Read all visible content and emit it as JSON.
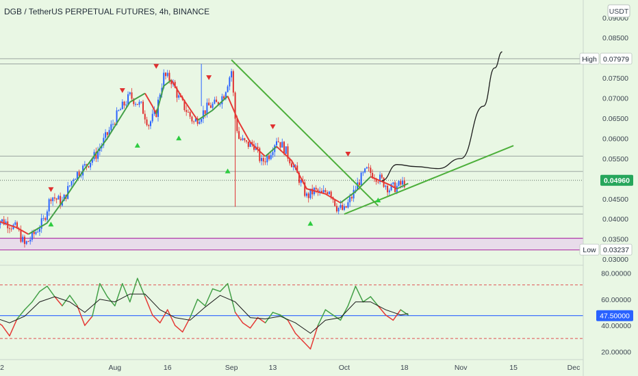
{
  "header": {
    "title": "DGB / TetherUS PERPETUAL FUTURES, 4h, BINANCE",
    "currency_label": "USDT"
  },
  "colors": {
    "background": "#e9f7e4",
    "up_candle": "#2962ff",
    "down_candle": "#e03030",
    "trendline": "#4caf3a",
    "ma_up": "#43a047",
    "ma_down": "#e53935",
    "rsi_upper": "#43a047",
    "rsi_lower": "#e53935",
    "rsi_signal": "#1a1a1a",
    "projection": "#1a1a1a",
    "zone_fill": "#e8dcea",
    "zone_border": "#b03aa8",
    "last_price_tag": "#26a65b",
    "rsi_level_tag": "#2962ff",
    "level_line": "#9aa5a0",
    "dashed_level": "#e05050"
  },
  "chart_data": [
    {
      "type": "candlestick",
      "name": "price",
      "y_axis_ticks": [
        "0.09000",
        "0.08500",
        "0.07979",
        "0.07500",
        "0.07000",
        "0.06500",
        "0.06000",
        "0.05500",
        "0.04960",
        "0.04500",
        "0.04000",
        "0.03500",
        "0.03237",
        "0.03000"
      ],
      "ylim": [
        0.029,
        0.092
      ],
      "x_axis_ticks": [
        "2",
        "Aug",
        "16",
        "Sep",
        "13",
        "Oct",
        "18",
        "Nov",
        "15",
        "Dec"
      ],
      "x_tick_days": [
        2,
        32,
        46,
        63,
        74,
        93,
        109,
        124,
        138,
        154
      ],
      "high": {
        "label": "High",
        "value": "0.07979"
      },
      "low": {
        "label": "Low",
        "value": "0.03237"
      },
      "last_price": "0.04960",
      "last_price_value": 0.0496,
      "horizontal_levels": [
        0.0798,
        0.0785,
        0.0556,
        0.0518,
        0.0431,
        0.0412
      ],
      "support_zone": [
        0.0323,
        0.0352
      ],
      "trendline_resistance": [
        [
          63,
          0.0795
        ],
        [
          102,
          0.0433
        ]
      ],
      "trendline_support": [
        [
          93,
          0.0412
        ],
        [
          138,
          0.0582
        ]
      ],
      "projection_path": [
        [
          103,
          0.0495
        ],
        [
          107,
          0.0535
        ],
        [
          112,
          0.053
        ],
        [
          118,
          0.0525
        ],
        [
          124,
          0.055
        ],
        [
          130,
          0.068
        ],
        [
          133,
          0.0775
        ],
        [
          135,
          0.0815
        ]
      ],
      "close_path": [
        [
          0,
          0.04
        ],
        [
          3,
          0.0392
        ],
        [
          6,
          0.0375
        ],
        [
          8,
          0.0335
        ],
        [
          10,
          0.0356
        ],
        [
          13,
          0.0395
        ],
        [
          15,
          0.0458
        ],
        [
          18,
          0.044
        ],
        [
          21,
          0.0505
        ],
        [
          24,
          0.053
        ],
        [
          27,
          0.056
        ],
        [
          30,
          0.061
        ],
        [
          33,
          0.0665
        ],
        [
          36,
          0.0705
        ],
        [
          39,
          0.068
        ],
        [
          41,
          0.0635
        ],
        [
          43,
          0.0665
        ],
        [
          44,
          0.0715
        ],
        [
          45,
          0.0755
        ],
        [
          47,
          0.0745
        ],
        [
          49,
          0.07
        ],
        [
          51,
          0.067
        ],
        [
          53,
          0.064
        ],
        [
          55,
          0.066
        ],
        [
          57,
          0.068
        ],
        [
          59,
          0.0685
        ],
        [
          61,
          0.071
        ],
        [
          62,
          0.074
        ],
        [
          63,
          0.0768
        ],
        [
          64,
          0.065
        ],
        [
          65,
          0.06
        ],
        [
          67,
          0.0585
        ],
        [
          69,
          0.0585
        ],
        [
          71,
          0.054
        ],
        [
          73,
          0.056
        ],
        [
          75,
          0.06
        ],
        [
          77,
          0.0575
        ],
        [
          79,
          0.054
        ],
        [
          81,
          0.05
        ],
        [
          83,
          0.0455
        ],
        [
          85,
          0.047
        ],
        [
          87,
          0.046
        ],
        [
          89,
          0.0475
        ],
        [
          91,
          0.043
        ],
        [
          93,
          0.042
        ],
        [
          95,
          0.0455
        ],
        [
          97,
          0.0495
        ],
        [
          99,
          0.052
        ],
        [
          101,
          0.051
        ],
        [
          103,
          0.0495
        ],
        [
          105,
          0.0475
        ],
        [
          107,
          0.048
        ],
        [
          109,
          0.049
        ]
      ],
      "ma_segments": [
        {
          "trend": "down",
          "points": [
            [
              0,
              0.0398
            ],
            [
              6,
              0.0378
            ],
            [
              9,
              0.0362
            ]
          ]
        },
        {
          "trend": "up",
          "points": [
            [
              9,
              0.0362
            ],
            [
              14,
              0.039
            ],
            [
              19,
              0.0455
            ],
            [
              24,
              0.0525
            ],
            [
              30,
              0.06
            ],
            [
              36,
              0.069
            ],
            [
              40,
              0.0712
            ]
          ]
        },
        {
          "trend": "down",
          "points": [
            [
              40,
              0.0712
            ],
            [
              42,
              0.068
            ],
            [
              43,
              0.066
            ]
          ]
        },
        {
          "trend": "up",
          "points": [
            [
              43,
              0.066
            ],
            [
              45,
              0.073
            ],
            [
              47,
              0.0745
            ]
          ]
        },
        {
          "trend": "down",
          "points": [
            [
              47,
              0.0745
            ],
            [
              50,
              0.07
            ],
            [
              54,
              0.0645
            ]
          ]
        },
        {
          "trend": "up",
          "points": [
            [
              54,
              0.0645
            ],
            [
              58,
              0.067
            ],
            [
              62,
              0.0705
            ]
          ]
        },
        {
          "trend": "down",
          "points": [
            [
              62,
              0.0705
            ],
            [
              65,
              0.064
            ],
            [
              68,
              0.059
            ],
            [
              72,
              0.0555
            ]
          ]
        },
        {
          "trend": "up",
          "points": [
            [
              72,
              0.0555
            ],
            [
              75,
              0.058
            ]
          ]
        },
        {
          "trend": "down",
          "points": [
            [
              75,
              0.058
            ],
            [
              79,
              0.0545
            ],
            [
              83,
              0.0475
            ],
            [
              88,
              0.0462
            ],
            [
              92,
              0.044
            ]
          ]
        },
        {
          "trend": "up",
          "points": [
            [
              92,
              0.044
            ],
            [
              96,
              0.0468
            ],
            [
              100,
              0.0505
            ]
          ]
        },
        {
          "trend": "down",
          "points": [
            [
              100,
              0.0505
            ],
            [
              105,
              0.0485
            ],
            [
              107,
              0.0475
            ]
          ]
        },
        {
          "trend": "up",
          "points": [
            [
              107,
              0.0475
            ],
            [
              110,
              0.0488
            ]
          ]
        }
      ],
      "markers_down": [
        [
          15,
          0.0472
        ],
        [
          34,
          0.0718
        ],
        [
          43,
          0.0778
        ],
        [
          57,
          0.075
        ],
        [
          74,
          0.0628
        ],
        [
          94,
          0.056
        ]
      ],
      "markers_up": [
        [
          15,
          0.0388
        ],
        [
          38,
          0.0584
        ],
        [
          49,
          0.0602
        ],
        [
          62,
          0.052
        ],
        [
          84,
          0.039
        ],
        [
          102,
          0.0448
        ]
      ]
    },
    {
      "type": "line",
      "name": "oscillator",
      "y_axis_ticks": [
        "80.00000",
        "60.00000",
        "47.50000",
        "40.00000",
        "20.00000"
      ],
      "ylim": [
        17,
        85
      ],
      "level_value": 47.5,
      "level_label": "47.50000",
      "dashed_levels": [
        71,
        30
      ],
      "series": [
        {
          "line": "main",
          "points": [
            [
              0,
              44
            ],
            [
              2,
              40
            ],
            [
              4,
              32
            ],
            [
              6,
              45
            ],
            [
              8,
              52
            ],
            [
              10,
              58
            ],
            [
              12,
              66
            ],
            [
              14,
              70
            ],
            [
              16,
              62
            ],
            [
              18,
              55
            ],
            [
              20,
              63
            ],
            [
              22,
              55
            ],
            [
              24,
              40
            ],
            [
              26,
              47
            ],
            [
              28,
              72
            ],
            [
              30,
              62
            ],
            [
              32,
              55
            ],
            [
              34,
              72
            ],
            [
              36,
              58
            ],
            [
              38,
              76
            ],
            [
              40,
              62
            ],
            [
              42,
              48
            ],
            [
              44,
              42
            ],
            [
              46,
              52
            ],
            [
              48,
              40
            ],
            [
              50,
              35
            ],
            [
              52,
              46
            ],
            [
              54,
              60
            ],
            [
              56,
              55
            ],
            [
              58,
              68
            ],
            [
              60,
              66
            ],
            [
              62,
              72
            ],
            [
              64,
              50
            ],
            [
              66,
              42
            ],
            [
              68,
              38
            ],
            [
              70,
              46
            ],
            [
              72,
              42
            ],
            [
              74,
              50
            ],
            [
              76,
              48
            ],
            [
              78,
              44
            ],
            [
              80,
              34
            ],
            [
              82,
              28
            ],
            [
              84,
              22
            ],
            [
              86,
              40
            ],
            [
              88,
              52
            ],
            [
              90,
              48
            ],
            [
              92,
              44
            ],
            [
              94,
              55
            ],
            [
              96,
              70
            ],
            [
              98,
              58
            ],
            [
              100,
              62
            ],
            [
              102,
              55
            ],
            [
              104,
              48
            ],
            [
              106,
              44
            ],
            [
              108,
              52
            ],
            [
              110,
              48
            ]
          ]
        },
        {
          "line": "signal",
          "points": [
            [
              0,
              46
            ],
            [
              4,
              42
            ],
            [
              8,
              47
            ],
            [
              12,
              58
            ],
            [
              16,
              62
            ],
            [
              20,
              58
            ],
            [
              24,
              50
            ],
            [
              28,
              60
            ],
            [
              32,
              58
            ],
            [
              36,
              64
            ],
            [
              40,
              64
            ],
            [
              44,
              52
            ],
            [
              48,
              46
            ],
            [
              52,
              44
            ],
            [
              56,
              54
            ],
            [
              60,
              63
            ],
            [
              64,
              58
            ],
            [
              68,
              46
            ],
            [
              72,
              45
            ],
            [
              76,
              47
            ],
            [
              80,
              42
            ],
            [
              84,
              34
            ],
            [
              88,
              44
            ],
            [
              92,
              46
            ],
            [
              96,
              58
            ],
            [
              100,
              58
            ],
            [
              104,
              52
            ],
            [
              108,
              48
            ],
            [
              110,
              49
            ]
          ]
        }
      ]
    }
  ]
}
